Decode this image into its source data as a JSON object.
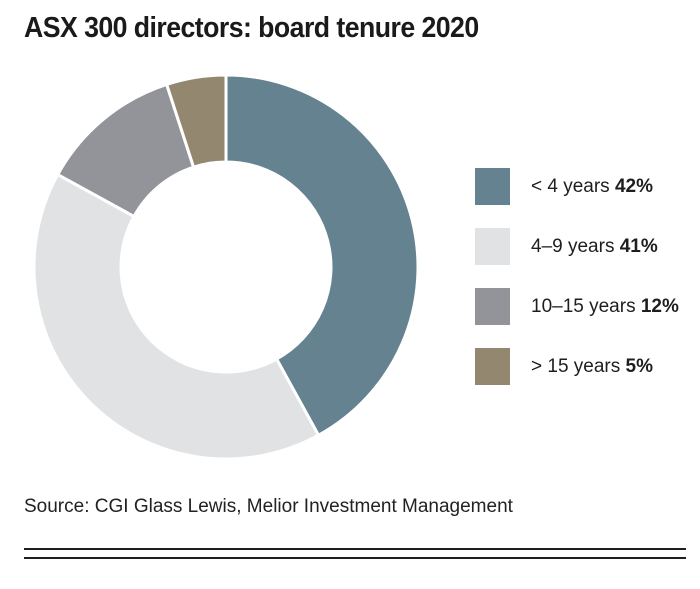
{
  "title": "ASX 300 directors: board tenure 2020",
  "source": "Source: CGI Glass Lewis, Melior Investment Management",
  "chart_data": {
    "type": "pie",
    "title": "ASX 300 directors: board tenure 2020",
    "series": [
      {
        "name": "",
        "values": [
          42,
          41,
          12,
          5
        ]
      }
    ],
    "categories": [
      "< 4 years",
      "4–9 years",
      "10–15 years",
      "> 15 years"
    ],
    "values": [
      42,
      41,
      12,
      5
    ],
    "value_labels": [
      "42%",
      "41%",
      "12%",
      "5%"
    ],
    "colors": [
      "#64828f",
      "#e1e2e4",
      "#929499",
      "#93886f"
    ],
    "donut": true,
    "legend_placement": "right"
  }
}
